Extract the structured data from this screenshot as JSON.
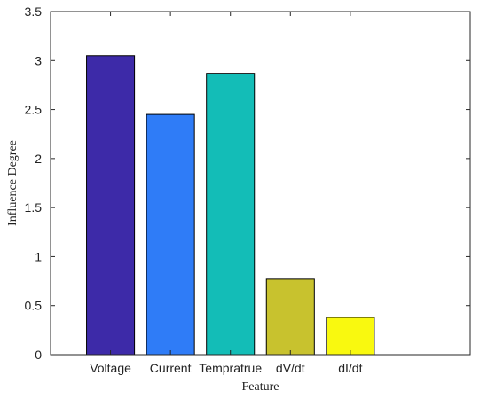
{
  "chart_data": {
    "type": "bar",
    "categories": [
      "Voltage",
      "Current",
      "Tempratrue",
      "dV/dt",
      "dI/dt"
    ],
    "values": [
      3.05,
      2.45,
      2.87,
      0.77,
      0.38
    ],
    "bar_colors": [
      "#3d2aa8",
      "#2f7cf7",
      "#13bdb7",
      "#c8c22e",
      "#f9f90f"
    ],
    "title": "",
    "xlabel": "Feature",
    "ylabel": "Influence Degree",
    "ylim": [
      0,
      3.5
    ],
    "yticks": [
      "0",
      "0.5",
      "1",
      "1.5",
      "2",
      "2.5",
      "3",
      "3.5"
    ],
    "grid": false,
    "legend": "none"
  }
}
